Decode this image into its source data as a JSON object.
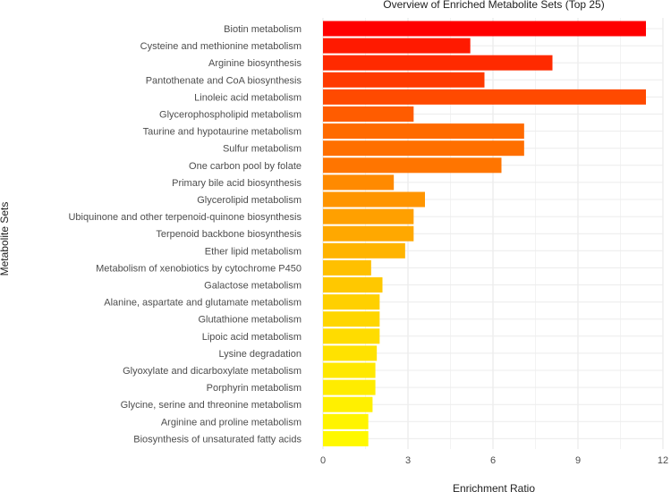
{
  "chart_data": {
    "type": "bar",
    "orientation": "horizontal",
    "title": "Overview of Enriched Metabolite Sets (Top 25)",
    "xlabel": "Enrichment Ratio",
    "ylabel": "Metabolite Sets",
    "xlim": [
      0,
      12
    ],
    "xticks": [
      0,
      3,
      6,
      9,
      12
    ],
    "grid": true,
    "legend": "none",
    "categories": [
      "Biotin metabolism",
      "Cysteine and methionine metabolism",
      "Arginine biosynthesis",
      "Pantothenate and CoA biosynthesis",
      "Linoleic acid metabolism",
      "Glycerophospholipid metabolism",
      "Taurine and hypotaurine metabolism",
      "Sulfur metabolism",
      "One carbon pool by folate",
      "Primary bile acid biosynthesis",
      "Glycerolipid metabolism",
      "Ubiquinone and other terpenoid-quinone biosynthesis",
      "Terpenoid backbone biosynthesis",
      "Ether lipid metabolism",
      "Metabolism of xenobiotics by cytochrome P450",
      "Galactose metabolism",
      "Alanine, aspartate and glutamate metabolism",
      "Glutathione metabolism",
      "Lipoic acid metabolism",
      "Lysine degradation",
      "Glyoxylate and dicarboxylate metabolism",
      "Porphyrin metabolism",
      "Glycine, serine and threonine metabolism",
      "Arginine and proline metabolism",
      "Biosynthesis of unsaturated fatty acids"
    ],
    "values": [
      11.4,
      5.2,
      8.1,
      5.7,
      11.4,
      3.2,
      7.1,
      7.1,
      6.3,
      2.5,
      3.6,
      3.2,
      3.2,
      2.9,
      1.7,
      2.1,
      2.0,
      2.0,
      2.0,
      1.9,
      1.85,
      1.85,
      1.75,
      1.6,
      1.6
    ],
    "colors": [
      "#ff0000",
      "#ff1a00",
      "#ff2a00",
      "#ff3a00",
      "#ff4a00",
      "#ff5c00",
      "#ff6a00",
      "#ff6f00",
      "#ff7500",
      "#ff8a00",
      "#ff9500",
      "#ffa000",
      "#ffa800",
      "#ffb400",
      "#ffc000",
      "#ffc800",
      "#ffd000",
      "#ffd600",
      "#ffdc00",
      "#ffe200",
      "#ffe800",
      "#ffec00",
      "#fff000",
      "#fff400",
      "#fff800"
    ]
  }
}
